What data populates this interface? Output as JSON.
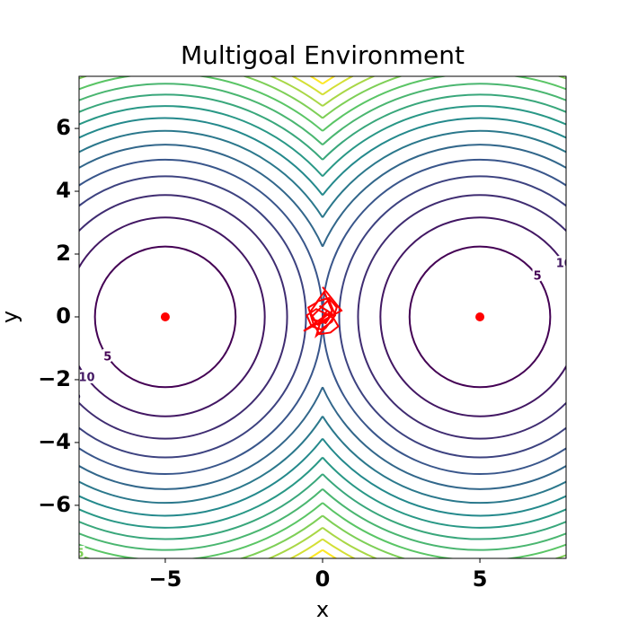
{
  "chart_data": {
    "type": "contour",
    "title": "Multigoal Environment",
    "x_label": "x",
    "y_label": "y",
    "xlim": [
      -7.74,
      7.74
    ],
    "ylim": [
      -7.69,
      7.66
    ],
    "xticks": [
      {
        "value": -5,
        "label": "−5"
      },
      0,
      5
    ],
    "yticks": [
      {
        "value": -6,
        "label": "−6"
      },
      {
        "value": -4,
        "label": "−4"
      },
      {
        "value": -2,
        "label": "−2"
      },
      0,
      2,
      4,
      6
    ],
    "levels": [
      5,
      10,
      15,
      20,
      25,
      30,
      35,
      40,
      45,
      50,
      55,
      60,
      65,
      70,
      75,
      80
    ],
    "colormap": "viridis",
    "goals": {
      "x": [
        -5,
        5
      ],
      "y": [
        0,
        0
      ],
      "color": "#ff0000"
    },
    "trajectory": {
      "color": "#ff0000",
      "x": [
        0,
        0.15,
        -0.1,
        0.3,
        0.1,
        -0.25,
        -0.4,
        -0.15,
        0.2,
        0.45,
        0.3,
        -0.05,
        -0.35,
        -0.5,
        -0.2,
        0.1,
        0.35,
        0.5,
        0.25,
        -0.1,
        -0.3,
        -0.45,
        -0.2,
        0.05,
        0.3,
        0.15,
        -0.15,
        -0.35,
        0.0,
        0.2,
        0.4,
        0.1,
        -0.2,
        -0.05,
        0.25,
        -0.6,
        0.6,
        0.0
      ],
      "y": [
        0,
        0.2,
        0.35,
        0.1,
        -0.2,
        -0.1,
        0.15,
        0.5,
        0.6,
        0.3,
        -0.15,
        -0.4,
        -0.3,
        0.05,
        0.25,
        0.1,
        -0.05,
        -0.3,
        -0.5,
        -0.55,
        -0.2,
        0.3,
        0.45,
        0.8,
        0.2,
        -0.1,
        -0.25,
        0.0,
        0.35,
        0.55,
        0.05,
        -0.35,
        -0.6,
        -0.1,
        0.15,
        -0.45,
        0.2,
        0.95
      ]
    }
  }
}
